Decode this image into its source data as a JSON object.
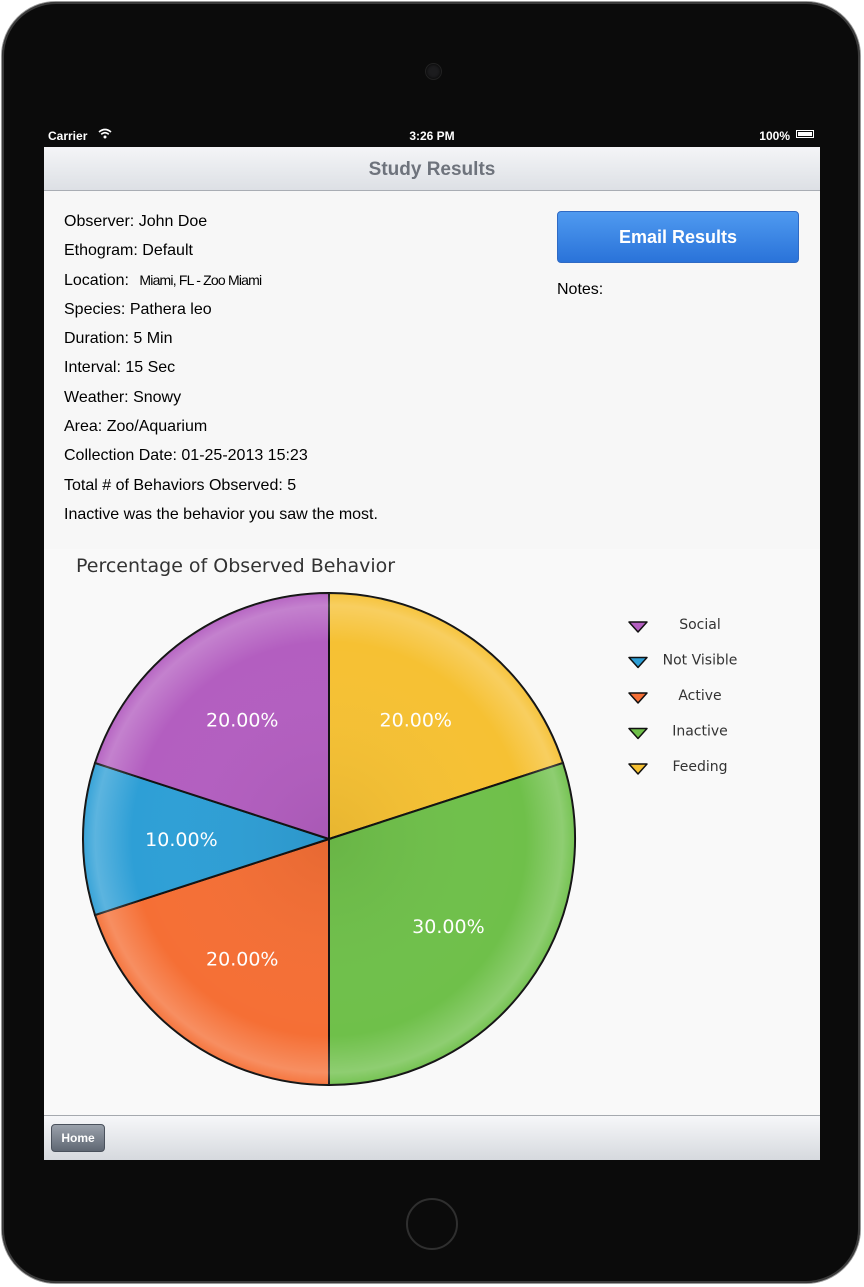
{
  "status_bar": {
    "carrier": "Carrier",
    "time": "3:26 PM",
    "battery": "100%"
  },
  "navbar": {
    "title": "Study Results"
  },
  "info": {
    "observer": "Observer: John Doe",
    "ethogram": "Ethogram: Default",
    "location_label": "Location:",
    "location_value": "Miami, FL - Zoo Miami",
    "species": "Species: Pathera leo",
    "duration": "Duration: 5 Min",
    "interval": "Interval: 15 Sec",
    "weather": "Weather: Snowy",
    "area": "Area: Zoo/Aquarium",
    "collection_date": "Collection Date: 01-25-2013 15:23",
    "total_behaviors": "Total # of Behaviors Observed: 5",
    "most_seen": "Inactive was the behavior you saw the most."
  },
  "email_button": {
    "label": "Email Results"
  },
  "notes": {
    "label": "Notes:"
  },
  "toolbar": {
    "home_label": "Home"
  },
  "chart_data": {
    "type": "pie",
    "title": "Percentage of Observed Behavior",
    "legend_position": "right",
    "slices": [
      {
        "label": "Feeding",
        "value": 20.0,
        "display": "20.00%",
        "color": "#f6c133"
      },
      {
        "label": "Inactive",
        "value": 30.0,
        "display": "30.00%",
        "color": "#6fc04a"
      },
      {
        "label": "Active",
        "value": 20.0,
        "display": "20.00%",
        "color": "#f56f35"
      },
      {
        "label": "Not Visible",
        "value": 10.0,
        "display": "10.00%",
        "color": "#2e9fd6"
      },
      {
        "label": "Social",
        "value": 20.0,
        "display": "20.00%",
        "color": "#b35ec0"
      }
    ],
    "legend_order": [
      "Social",
      "Not Visible",
      "Active",
      "Inactive",
      "Feeding"
    ]
  }
}
